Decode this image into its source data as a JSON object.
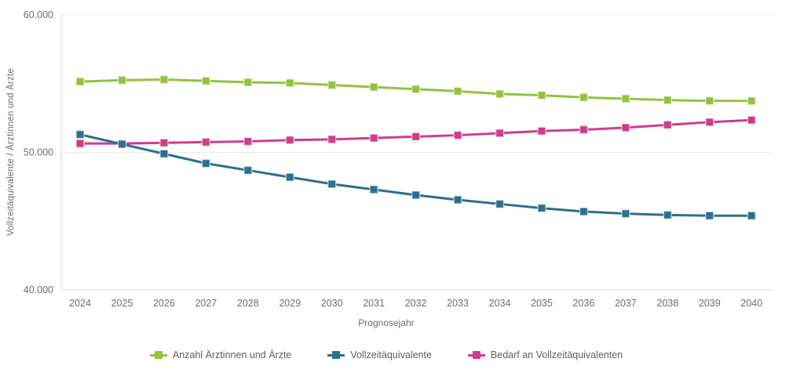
{
  "chart_data": {
    "type": "line",
    "title": "",
    "xlabel": "Prognosejahr",
    "ylabel": "Vollzeitäquivalente / Ärztinnen und Ärzte",
    "x": [
      2024,
      2025,
      2026,
      2027,
      2028,
      2029,
      2030,
      2031,
      2032,
      2033,
      2034,
      2035,
      2036,
      2037,
      2038,
      2039,
      2040
    ],
    "series": [
      {
        "name": "Anzahl Ärztinnen und Ärzte",
        "color": "#95c13e",
        "values": [
          55150,
          55250,
          55300,
          55200,
          55100,
          55050,
          54900,
          54750,
          54600,
          54450,
          54250,
          54150,
          54000,
          53900,
          53800,
          53750,
          53750
        ]
      },
      {
        "name": "Vollzeitäquivalente",
        "color": "#2d6f8e",
        "values": [
          51300,
          50600,
          49900,
          49200,
          48700,
          48200,
          47700,
          47300,
          46900,
          46550,
          46250,
          45950,
          45700,
          45550,
          45450,
          45400,
          45400
        ]
      },
      {
        "name": "Bedarf an Vollzeitäquivalenten",
        "color": "#cf3c8b",
        "values": [
          50650,
          50650,
          50700,
          50750,
          50800,
          50900,
          50950,
          51050,
          51150,
          51250,
          51400,
          51550,
          51650,
          51800,
          52000,
          52200,
          52350
        ]
      }
    ],
    "ylim": [
      40000,
      60000
    ],
    "yticks": [
      {
        "value": 60000,
        "label": "60.000"
      },
      {
        "value": 50000,
        "label": "50.000"
      },
      {
        "value": 40000,
        "label": "40.000"
      }
    ],
    "grid": "single horizontal gridline at 50.000; plot box bordered left/top/bottom",
    "legend_position": "bottom",
    "marker": "square",
    "axis_text_color": "#6d6d6d",
    "border_color": "#d9d9d9",
    "gridline_color": "#ededed"
  }
}
